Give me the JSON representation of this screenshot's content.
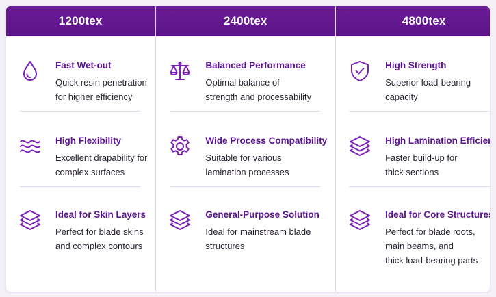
{
  "columns": [
    {
      "header": "1200tex",
      "items": [
        {
          "icon": "droplet-icon",
          "title": "Fast Wet-out",
          "lines": [
            "Quick resin penetration",
            "for higher efficiency"
          ]
        },
        {
          "icon": "waves-icon",
          "title": "High Flexibility",
          "lines": [
            "Excellent drapability for",
            "complex surfaces"
          ]
        },
        {
          "icon": "layers-icon",
          "title": "Ideal for Skin Layers",
          "lines": [
            "Perfect for blade skins",
            "and complex contours"
          ]
        }
      ]
    },
    {
      "header": "2400tex",
      "items": [
        {
          "icon": "balance-scale-icon",
          "title": "Balanced Performance",
          "lines": [
            "Optimal balance of",
            "strength and processability"
          ]
        },
        {
          "icon": "gear-icon",
          "title": "Wide Process Compatibility",
          "lines": [
            "Suitable for various",
            "lamination processes"
          ]
        },
        {
          "icon": "layers-icon",
          "title": "General-Purpose Solution",
          "lines": [
            "Ideal for mainstream blade",
            "structures"
          ]
        }
      ]
    },
    {
      "header": "4800tex",
      "items": [
        {
          "icon": "shield-check-icon",
          "title": "High Strength",
          "lines": [
            "Superior load-bearing",
            "capacity"
          ]
        },
        {
          "icon": "layers-icon",
          "title": "High Lamination Efficiency",
          "lines": [
            "Faster build-up for",
            "thick sections"
          ]
        },
        {
          "icon": "layers-icon",
          "title": "Ideal for Core Structures",
          "lines": [
            "Perfect for blade roots,",
            "main beams, and",
            "thick load-bearing parts"
          ]
        }
      ]
    }
  ],
  "colors": {
    "header_bg": "#6a1b96",
    "title": "#5b1291",
    "icon": "#7b1fb8",
    "text": "#2a2333"
  }
}
